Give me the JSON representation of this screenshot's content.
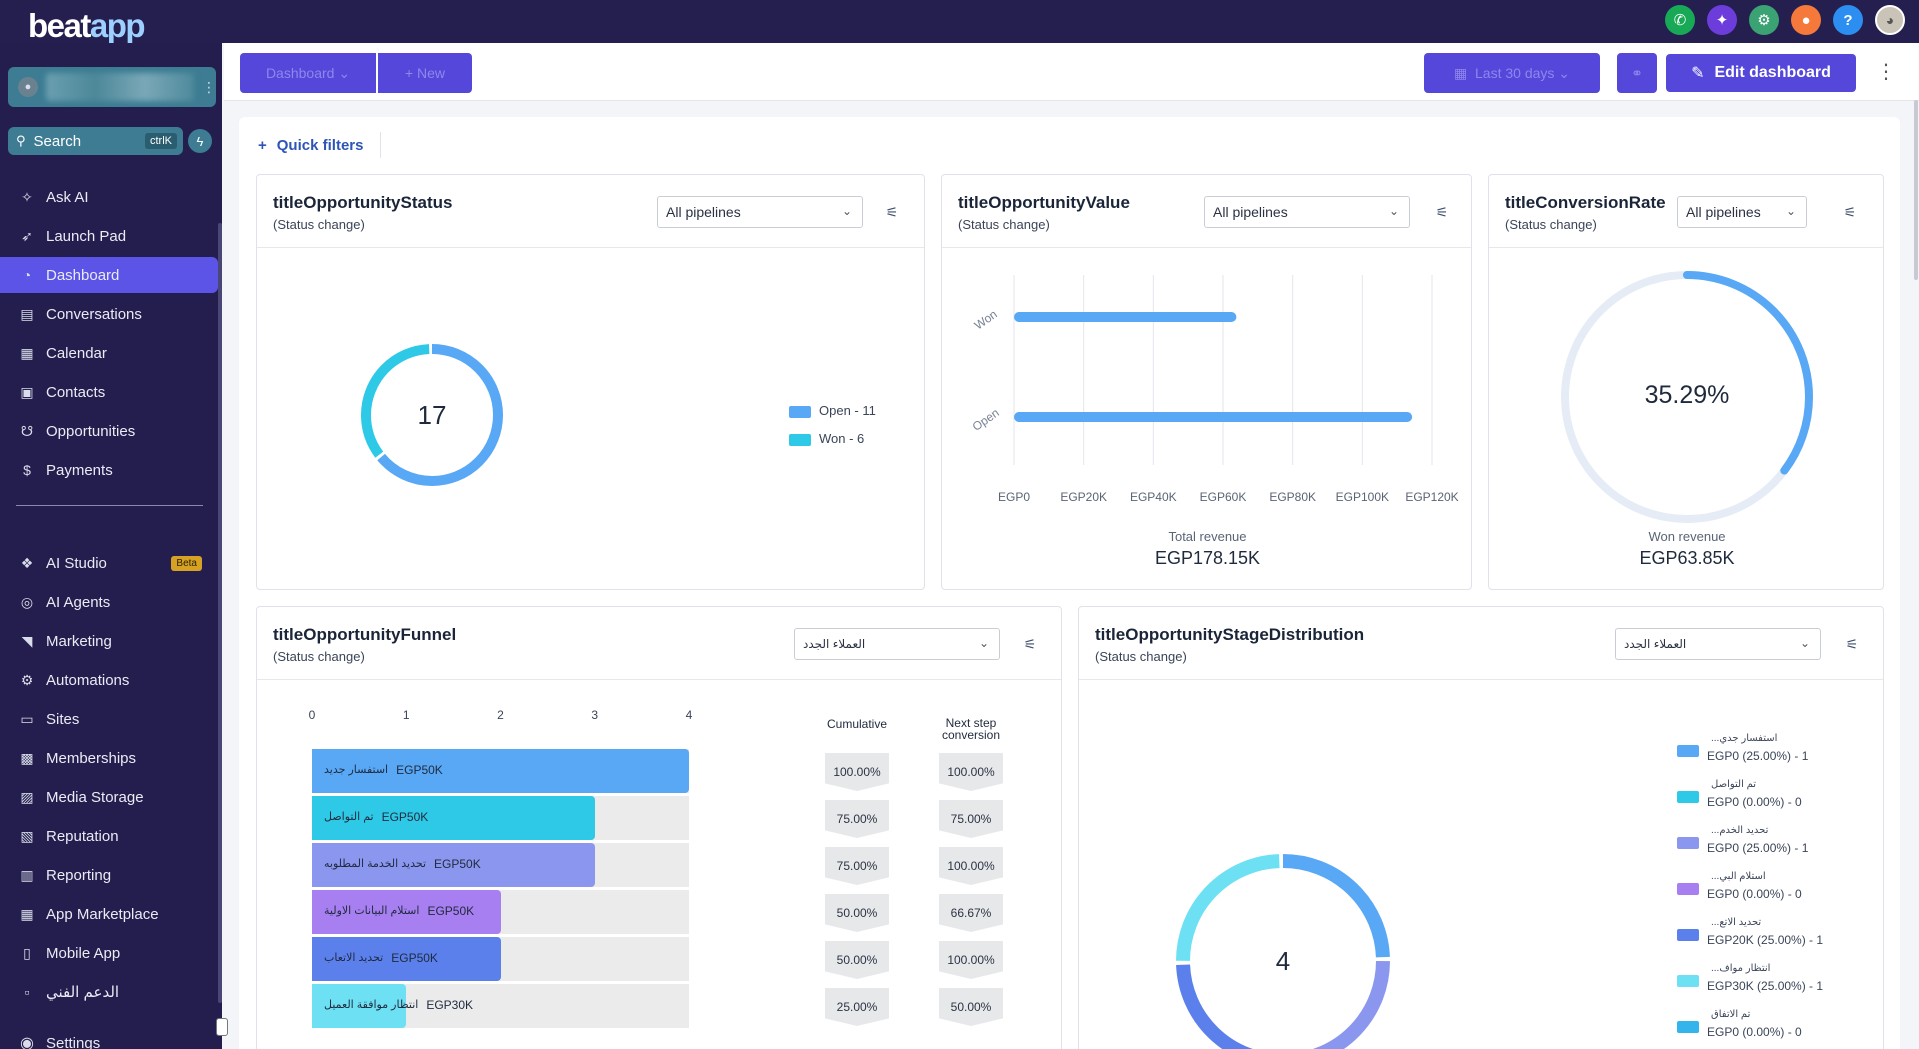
{
  "brand": {
    "logo_text_a": "beat",
    "logo_text_b": "app"
  },
  "topbar_icons": [
    {
      "name": "phone-icon",
      "glyph": "✆",
      "color": "#18a957"
    },
    {
      "name": "sparkle-icon",
      "glyph": "✦",
      "color": "#6d3ddb"
    },
    {
      "name": "gear-icon",
      "glyph": "⚙",
      "color": "#3aa273"
    },
    {
      "name": "notification-icon",
      "glyph": "●",
      "color": "#f5793a"
    },
    {
      "name": "help-icon",
      "glyph": "?",
      "color": "#2b8ef0"
    }
  ],
  "sidebar": {
    "search_label": "Search",
    "search_shortcut": "ctrlK",
    "items": [
      {
        "label": "Ask AI",
        "icon": "sparkle-icon",
        "glyph": "✧"
      },
      {
        "label": "Launch Pad",
        "icon": "rocket-icon",
        "glyph": "➶"
      },
      {
        "label": "Dashboard",
        "icon": "pie-chart-icon",
        "glyph": "◔",
        "active": true
      },
      {
        "label": "Conversations",
        "icon": "chat-icon",
        "glyph": "▤"
      },
      {
        "label": "Calendar",
        "icon": "calendar-icon",
        "glyph": "▦"
      },
      {
        "label": "Contacts",
        "icon": "contacts-icon",
        "glyph": "▣"
      },
      {
        "label": "Opportunities",
        "icon": "handshake-icon",
        "glyph": "☋"
      },
      {
        "label": "Payments",
        "icon": "dollar-icon",
        "glyph": "$"
      }
    ],
    "items2": [
      {
        "label": "AI Studio",
        "icon": "ai-studio-icon",
        "glyph": "❖",
        "badge": "Beta"
      },
      {
        "label": "AI Agents",
        "icon": "ai-agents-icon",
        "glyph": "◎"
      },
      {
        "label": "Marketing",
        "icon": "megaphone-icon",
        "glyph": "◥"
      },
      {
        "label": "Automations",
        "icon": "cog-icon",
        "glyph": "⚙"
      },
      {
        "label": "Sites",
        "icon": "sites-icon",
        "glyph": "▭"
      },
      {
        "label": "Memberships",
        "icon": "memberships-icon",
        "glyph": "▩"
      },
      {
        "label": "Media Storage",
        "icon": "media-icon",
        "glyph": "▨"
      },
      {
        "label": "Reputation",
        "icon": "reputation-icon",
        "glyph": "▧"
      },
      {
        "label": "Reporting",
        "icon": "bar-chart-icon",
        "glyph": "▥"
      },
      {
        "label": "App Marketplace",
        "icon": "grid-icon",
        "glyph": "▦"
      },
      {
        "label": "Mobile App",
        "icon": "mobile-icon",
        "glyph": "▯"
      },
      {
        "label": "الدعم الفني",
        "icon": "support-icon",
        "glyph": "▫"
      }
    ],
    "settings_label": "Settings"
  },
  "toolbar": {
    "dashboard_select": "Dashboard",
    "new_label": "+ New",
    "date_range": "Last 30 days",
    "edit_label": "Edit dashboard"
  },
  "quick_filters": {
    "label": "Quick filters"
  },
  "status_card": {
    "title": "titleOpportunityStatus",
    "subtitle": "(Status change)",
    "pipeline": "All pipelines",
    "total": "17",
    "legend": [
      {
        "label": "Open - 11",
        "color": "#59a8f5"
      },
      {
        "label": "Won - 6",
        "color": "#2ec9e6"
      }
    ]
  },
  "value_card": {
    "title": "titleOpportunityValue",
    "subtitle": "(Status change)",
    "pipeline": "All pipelines",
    "total_label": "Total revenue",
    "total": "EGP178.15K"
  },
  "conversion_card": {
    "title": "titleConversionRate",
    "subtitle": "(Status change)",
    "pipeline": "All pipelines",
    "rate": "35.29%",
    "won_label": "Won revenue",
    "won_value": "EGP63.85K"
  },
  "funnel_card": {
    "title": "titleOpportunityFunnel",
    "subtitle": "(Status change)",
    "pipeline": "العملاء الجدد",
    "col_cumulative": "Cumulative",
    "col_next": "Next step conversion",
    "rows": [
      {
        "label": "استفسار جديد",
        "value": "EGP50K",
        "cumulative": "100.00%",
        "next": "100.00%"
      },
      {
        "label": "تم التواصل",
        "value": "EGP50K",
        "cumulative": "75.00%",
        "next": "75.00%"
      },
      {
        "label": "تحديد الخدمة المطلوبه",
        "value": "EGP50K",
        "cumulative": "75.00%",
        "next": "100.00%"
      },
      {
        "label": "استلام البيانات الاولية",
        "value": "EGP50K",
        "cumulative": "50.00%",
        "next": "66.67%"
      },
      {
        "label": "تحديد الاتعاب",
        "value": "EGP50K",
        "cumulative": "50.00%",
        "next": "100.00%"
      },
      {
        "label": "انتظار موافقة العميل",
        "value": "EGP30K",
        "cumulative": "25.00%",
        "next": "50.00%"
      }
    ]
  },
  "stage_card": {
    "title": "titleOpportunityStageDistribution",
    "subtitle": "(Status change)",
    "pipeline": "العملاء الجدد",
    "total": "4",
    "legend": [
      {
        "name": "استفسار جدي...",
        "value": "EGP0 (25.00%) - 1",
        "color": "#59a8f5"
      },
      {
        "name": "تم التواصل",
        "value": "EGP0 (0.00%) - 0",
        "color": "#2ec9e6"
      },
      {
        "name": "تحديد الخدم...",
        "value": "EGP0 (25.00%) - 1",
        "color": "#8b97ee"
      },
      {
        "name": "استلام البي...",
        "value": "EGP0 (0.00%) - 0",
        "color": "#a77ff0"
      },
      {
        "name": "تحديد الاتع...",
        "value": "EGP20K (25.00%) - 1",
        "color": "#5b80ec"
      },
      {
        "name": "انتظار مواف...",
        "value": "EGP30K (25.00%) - 1",
        "color": "#6de0f4"
      },
      {
        "name": "تم الاتفاق",
        "value": "EGP0 (0.00%) - 0",
        "color": "#33b5ec"
      }
    ]
  },
  "chart_data": [
    {
      "type": "pie",
      "title": "titleOpportunityStatus",
      "categories": [
        "Open",
        "Won"
      ],
      "values": [
        11,
        6
      ],
      "colors": [
        "#59a8f5",
        "#2ec9e6"
      ]
    },
    {
      "type": "bar",
      "title": "titleOpportunityValue",
      "orientation": "horizontal",
      "categories": [
        "Won",
        "Open"
      ],
      "values": [
        63850,
        114300
      ],
      "xlim": [
        0,
        120000
      ],
      "xticks": [
        "EGP0",
        "EGP20K",
        "EGP40K",
        "EGP60K",
        "EGP80K",
        "EGP100K",
        "EGP120K"
      ],
      "xlabel": "Total revenue",
      "color": "#59a8f5"
    },
    {
      "type": "pie",
      "title": "titleConversionRate",
      "categories": [
        "Won"
      ],
      "values": [
        35.29
      ],
      "color": "#59a8f5"
    },
    {
      "type": "bar",
      "title": "titleOpportunityFunnel",
      "orientation": "horizontal",
      "categories": [
        "استفسار جديد",
        "تم التواصل",
        "تحديد الخدمة المطلوبه",
        "استلام البيانات الاولية",
        "تحديد الاتعاب",
        "انتظار موافقة العميل"
      ],
      "values": [
        4,
        3,
        3,
        2,
        2,
        1
      ],
      "xlim": [
        0,
        4
      ],
      "xticks": [
        "0",
        "1",
        "2",
        "3",
        "4"
      ],
      "colors": [
        "#59a8f5",
        "#2ec9e6",
        "#8b97ee",
        "#a77ff0",
        "#5b80ec",
        "#6de0f4"
      ]
    },
    {
      "type": "pie",
      "title": "titleOpportunityStageDistribution",
      "categories": [
        "استفسار جدي...",
        "تحديد الخدم...",
        "تحديد الاتع...",
        "انتظار مواف..."
      ],
      "values": [
        1,
        1,
        1,
        1
      ],
      "colors": [
        "#59a8f5",
        "#8b97ee",
        "#5b80ec",
        "#6de0f4"
      ]
    }
  ]
}
